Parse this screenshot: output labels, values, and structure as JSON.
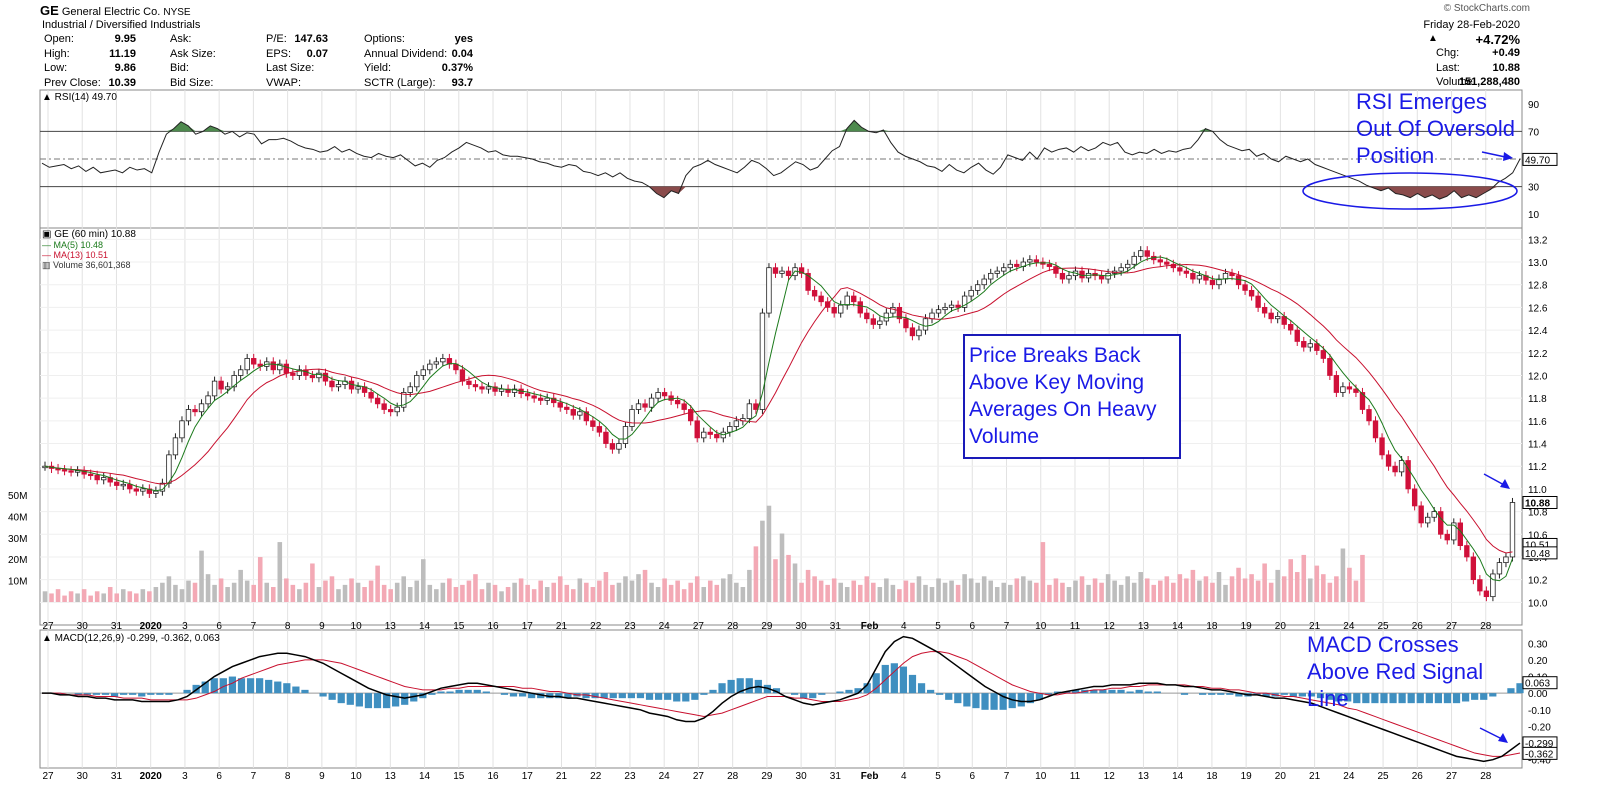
{
  "header": {
    "symbol": "GE",
    "company": "General Electric Co.",
    "exchange": "NYSE",
    "sector": "Industrial / Diversified Industrials",
    "credit": "© StockCharts.com",
    "date": "Friday  28-Feb-2020",
    "change_pct": "+4.72%",
    "stats_left": [
      {
        "label": "Open:",
        "value": "9.95"
      },
      {
        "label": "High:",
        "value": "11.19"
      },
      {
        "label": "Low:",
        "value": "9.86"
      },
      {
        "label": "Prev Close:",
        "value": "10.39"
      }
    ],
    "stats_mid": [
      {
        "label": "Ask:",
        "value": ""
      },
      {
        "label": "Ask Size:",
        "value": ""
      },
      {
        "label": "Bid:",
        "value": ""
      },
      {
        "label": "Bid Size:",
        "value": ""
      }
    ],
    "stats_mid2": [
      {
        "label": "P/E:",
        "value": "147.63"
      },
      {
        "label": "EPS:",
        "value": "0.07"
      },
      {
        "label": "Last Size:",
        "value": ""
      },
      {
        "label": "VWAP:",
        "value": ""
      }
    ],
    "stats_mid3": [
      {
        "label": "Options:",
        "value": "yes"
      },
      {
        "label": "Annual Dividend:",
        "value": "0.04"
      },
      {
        "label": "Yield:",
        "value": "0.37%"
      },
      {
        "label": "SCTR (Large):",
        "value": "93.7"
      }
    ],
    "stats_right": [
      {
        "label": "Chg:",
        "value": "+0.49"
      },
      {
        "label": "Last:",
        "value": "10.88"
      },
      {
        "label": "Volume:",
        "value": "151,288,480"
      }
    ]
  },
  "annotations": {
    "rsi_note": "RSI Emerges\nOut Of Oversold\nPosition",
    "price_note": "Price Breaks Back\nAbove Key Moving\nAverages On Heavy\nVolume",
    "macd_note": "MACD Crosses\nAbove Red Signal\nLine"
  },
  "colors": {
    "up": "#000000",
    "down": "#d0103a",
    "ma5": "#1b7a1b",
    "ma13": "#c8102e",
    "rsi_fill_up": "#4e8a4e",
    "rsi_fill_down": "#8a4b4b",
    "macd_hist": "#3f8fc0",
    "annot": "#1a1ae6"
  },
  "chart_data": [
    {
      "type": "line",
      "panel": "RSI",
      "title": "RSI(14) 49.70",
      "last": "49.70",
      "ylim": [
        0,
        100
      ],
      "yticks": [
        10,
        30,
        50,
        70,
        90
      ],
      "levels": [
        30,
        70
      ],
      "values": [
        47,
        44,
        45,
        46,
        43,
        45,
        41,
        44,
        40,
        41,
        42,
        40,
        44,
        42,
        43,
        40,
        55,
        68,
        72,
        77,
        74,
        68,
        70,
        74,
        72,
        68,
        70,
        66,
        69,
        68,
        61,
        64,
        64,
        65,
        63,
        60,
        58,
        57,
        55,
        56,
        59,
        55,
        57,
        54,
        52,
        51,
        54,
        52,
        51,
        53,
        49,
        45,
        47,
        44,
        49,
        51,
        55,
        58,
        62,
        60,
        58,
        55,
        56,
        53,
        52,
        52,
        51,
        50,
        48,
        47,
        45,
        44,
        46,
        45,
        41,
        40,
        38,
        40,
        37,
        40,
        36,
        34,
        33,
        30,
        25,
        22,
        27,
        25,
        38,
        44,
        46,
        49,
        46,
        44,
        42,
        40,
        44,
        49,
        47,
        43,
        38,
        40,
        44,
        48,
        46,
        42,
        44,
        50,
        56,
        59,
        72,
        78,
        73,
        70,
        69,
        71,
        62,
        55,
        52,
        50,
        48,
        45,
        44,
        41,
        46,
        42,
        40,
        44,
        47,
        42,
        39,
        44,
        53,
        51,
        49,
        55,
        50,
        58,
        55,
        57,
        58,
        55,
        59,
        56,
        58,
        62,
        60,
        62,
        55,
        53,
        55,
        54,
        57,
        54,
        56,
        55,
        57,
        58,
        64,
        72,
        70,
        64,
        60,
        58,
        56,
        57,
        52,
        54,
        50,
        48,
        52,
        50,
        48,
        50,
        46,
        44,
        42,
        40,
        38,
        36,
        34,
        31,
        29,
        27,
        29,
        25,
        24,
        22,
        25,
        22,
        24,
        21,
        23,
        27,
        22,
        24,
        22,
        25,
        28,
        33,
        36,
        40,
        50
      ]
    },
    {
      "type": "candlestick",
      "panel": "Price",
      "title": "GE (60 min) 10.88",
      "ma5_label": "MA(5) 10.48",
      "ma13_label": "MA(13) 10.51",
      "volume_label": "Volume 36,601,368",
      "last": "10.88",
      "ma5_last": "10.48",
      "ma13_last": "10.51",
      "ylim": [
        9.8,
        13.3
      ],
      "yticks": [
        10.0,
        10.2,
        10.4,
        10.6,
        10.8,
        11.0,
        11.2,
        11.4,
        11.6,
        11.8,
        12.0,
        12.2,
        12.4,
        12.6,
        12.8,
        13.0,
        13.2
      ],
      "close": [
        11.2,
        11.18,
        11.17,
        11.16,
        11.15,
        11.16,
        11.13,
        11.12,
        11.08,
        11.1,
        11.06,
        11.03,
        11.04,
        11.0,
        10.98,
        11.0,
        10.96,
        10.98,
        11.05,
        11.3,
        11.45,
        11.6,
        11.7,
        11.68,
        11.75,
        11.82,
        11.95,
        11.88,
        11.9,
        12.0,
        12.05,
        12.15,
        12.1,
        12.08,
        12.12,
        12.05,
        12.1,
        12.02,
        12.0,
        12.05,
        12.0,
        11.98,
        12.02,
        11.95,
        11.9,
        11.92,
        11.95,
        11.88,
        11.9,
        11.85,
        11.8,
        11.75,
        11.7,
        11.68,
        11.72,
        11.85,
        11.9,
        12.0,
        12.05,
        12.1,
        12.12,
        12.15,
        12.1,
        12.05,
        11.95,
        11.92,
        11.9,
        11.88,
        11.9,
        11.86,
        11.88,
        11.85,
        11.88,
        11.84,
        11.82,
        11.8,
        11.78,
        11.8,
        11.76,
        11.72,
        11.7,
        11.65,
        11.68,
        11.6,
        11.55,
        11.5,
        11.4,
        11.35,
        11.4,
        11.55,
        11.7,
        11.75,
        11.72,
        11.8,
        11.85,
        11.82,
        11.78,
        11.75,
        11.7,
        11.6,
        11.45,
        11.5,
        11.48,
        11.45,
        11.5,
        11.55,
        11.6,
        11.62,
        11.75,
        11.7,
        12.55,
        12.95,
        12.9,
        12.92,
        12.88,
        12.95,
        12.9,
        12.75,
        12.7,
        12.65,
        12.6,
        12.55,
        12.62,
        12.7,
        12.65,
        12.55,
        12.5,
        12.45,
        12.48,
        12.55,
        12.6,
        12.5,
        12.42,
        12.35,
        12.4,
        12.5,
        12.55,
        12.58,
        12.6,
        12.62,
        12.6,
        12.7,
        12.75,
        12.8,
        12.85,
        12.9,
        12.92,
        12.95,
        12.98,
        12.96,
        13.0,
        13.02,
        13.0,
        12.98,
        12.96,
        12.9,
        12.85,
        12.88,
        12.92,
        12.86,
        12.9,
        12.88,
        12.85,
        12.9,
        12.92,
        12.95,
        12.98,
        13.05,
        13.1,
        13.05,
        13.02,
        13.0,
        12.98,
        12.95,
        12.92,
        12.9,
        12.85,
        12.88,
        12.84,
        12.8,
        12.85,
        12.9,
        12.88,
        12.8,
        12.75,
        12.7,
        12.6,
        12.55,
        12.5,
        12.52,
        12.45,
        12.4,
        12.3,
        12.25,
        12.28,
        12.22,
        12.15,
        12.0,
        11.85,
        11.9,
        11.88,
        11.85,
        11.7,
        11.6,
        11.45,
        11.3,
        11.2,
        11.15,
        11.25,
        11.0,
        10.85,
        10.7,
        10.75,
        10.8,
        10.6,
        10.55,
        10.7,
        10.5,
        10.4,
        10.2,
        10.1,
        10.05,
        10.25,
        10.35,
        10.4,
        10.88
      ],
      "volume_millions": [
        5,
        4,
        6,
        3,
        5,
        4,
        6,
        3,
        5,
        4,
        7,
        4,
        6,
        5,
        4,
        6,
        5,
        7,
        9,
        12,
        8,
        6,
        10,
        9,
        24,
        13,
        8,
        11,
        7,
        9,
        15,
        10,
        8,
        21,
        9,
        7,
        28,
        11,
        8,
        6,
        9,
        18,
        7,
        10,
        12,
        6,
        8,
        11,
        9,
        7,
        10,
        17,
        8,
        6,
        9,
        12,
        7,
        10,
        20,
        8,
        6,
        9,
        11,
        7,
        8,
        10,
        13,
        6,
        9,
        8,
        5,
        7,
        9,
        11,
        8,
        6,
        10,
        7,
        9,
        12,
        8,
        6,
        11,
        9,
        7,
        10,
        14,
        8,
        9,
        12,
        10,
        13,
        15,
        9,
        7,
        11,
        8,
        10,
        6,
        9,
        12,
        7,
        10,
        8,
        11,
        13,
        9,
        7,
        15,
        26,
        38,
        45,
        20,
        32,
        22,
        18,
        9,
        15,
        12,
        10,
        8,
        11,
        9,
        7,
        10,
        8,
        12,
        9,
        7,
        11,
        8,
        6,
        10,
        9,
        12,
        8,
        7,
        11,
        9,
        10,
        8,
        13,
        11,
        9,
        12,
        10,
        7,
        9,
        8,
        11,
        12,
        10,
        9,
        28,
        8,
        11,
        9,
        7,
        10,
        12,
        8,
        11,
        9,
        13,
        10,
        8,
        12,
        9,
        14,
        11,
        8,
        10,
        12,
        9,
        13,
        11,
        15,
        10,
        12,
        9,
        14,
        8,
        12,
        16,
        11,
        13,
        10,
        18,
        9,
        15,
        12,
        20,
        14,
        22,
        11,
        17,
        13,
        9,
        12,
        25,
        16,
        10,
        22
      ]
    },
    {
      "type": "line",
      "panel": "MACD",
      "title": "MACD(12,26,9) -0.299, -0.362, 0.063",
      "series": [
        {
          "name": "MACD(12,26,9)",
          "last": "-0.299"
        },
        {
          "name": "signal",
          "last": "-0.362"
        },
        {
          "name": "histogram",
          "last": "0.063"
        }
      ],
      "ylim": [
        -0.45,
        0.38
      ],
      "yticks": [
        0.3,
        0.2,
        0.1,
        0.0,
        -0.1,
        -0.2,
        -0.3,
        -0.4
      ],
      "macd": [
        0.0,
        0.0,
        -0.01,
        -0.01,
        -0.02,
        -0.02,
        -0.03,
        -0.03,
        -0.04,
        -0.04,
        -0.04,
        -0.05,
        -0.05,
        -0.05,
        -0.05,
        -0.04,
        -0.02,
        0.02,
        0.06,
        0.1,
        0.13,
        0.16,
        0.18,
        0.2,
        0.22,
        0.23,
        0.24,
        0.24,
        0.23,
        0.22,
        0.2,
        0.18,
        0.15,
        0.12,
        0.09,
        0.06,
        0.03,
        0.01,
        -0.01,
        -0.02,
        -0.03,
        -0.02,
        -0.01,
        0.01,
        0.03,
        0.04,
        0.05,
        0.06,
        0.06,
        0.05,
        0.04,
        0.03,
        0.02,
        0.01,
        0.0,
        -0.01,
        -0.02,
        -0.02,
        -0.03,
        -0.03,
        -0.04,
        -0.05,
        -0.06,
        -0.07,
        -0.08,
        -0.09,
        -0.1,
        -0.12,
        -0.13,
        -0.14,
        -0.16,
        -0.17,
        -0.17,
        -0.15,
        -0.11,
        -0.06,
        -0.02,
        0.01,
        0.03,
        0.04,
        0.03,
        0.01,
        -0.02,
        -0.04,
        -0.06,
        -0.07,
        -0.06,
        -0.05,
        -0.04,
        -0.02,
        0.0,
        0.05,
        0.15,
        0.25,
        0.31,
        0.34,
        0.33,
        0.3,
        0.27,
        0.24,
        0.2,
        0.16,
        0.12,
        0.08,
        0.04,
        0.01,
        -0.02,
        -0.04,
        -0.05,
        -0.05,
        -0.04,
        -0.02,
        0.0,
        0.01,
        0.02,
        0.03,
        0.04,
        0.04,
        0.05,
        0.05,
        0.05,
        0.06,
        0.06,
        0.06,
        0.05,
        0.05,
        0.04,
        0.04,
        0.03,
        0.02,
        0.02,
        0.01,
        0.0,
        -0.01,
        -0.01,
        -0.02,
        -0.03,
        -0.03,
        -0.04,
        -0.05,
        -0.06,
        -0.08,
        -0.1,
        -0.12,
        -0.14,
        -0.16,
        -0.18,
        -0.2,
        -0.22,
        -0.24,
        -0.26,
        -0.28,
        -0.3,
        -0.32,
        -0.34,
        -0.36,
        -0.38,
        -0.39,
        -0.4,
        -0.41,
        -0.4,
        -0.38,
        -0.34,
        -0.3
      ],
      "signal": [
        0.0,
        0.0,
        0.0,
        -0.01,
        -0.01,
        -0.01,
        -0.02,
        -0.02,
        -0.02,
        -0.03,
        -0.03,
        -0.03,
        -0.04,
        -0.04,
        -0.04,
        -0.04,
        -0.04,
        -0.03,
        -0.01,
        0.01,
        0.04,
        0.06,
        0.09,
        0.11,
        0.13,
        0.15,
        0.17,
        0.18,
        0.19,
        0.2,
        0.2,
        0.2,
        0.19,
        0.18,
        0.16,
        0.14,
        0.12,
        0.1,
        0.08,
        0.06,
        0.04,
        0.03,
        0.02,
        0.02,
        0.02,
        0.03,
        0.03,
        0.04,
        0.04,
        0.04,
        0.04,
        0.04,
        0.04,
        0.03,
        0.03,
        0.02,
        0.01,
        0.01,
        0.0,
        -0.01,
        -0.01,
        -0.02,
        -0.03,
        -0.04,
        -0.05,
        -0.06,
        -0.07,
        -0.08,
        -0.09,
        -0.1,
        -0.11,
        -0.12,
        -0.13,
        -0.14,
        -0.13,
        -0.12,
        -0.1,
        -0.08,
        -0.06,
        -0.04,
        -0.02,
        -0.02,
        -0.02,
        -0.03,
        -0.03,
        -0.04,
        -0.05,
        -0.05,
        -0.05,
        -0.04,
        -0.03,
        -0.01,
        0.03,
        0.08,
        0.13,
        0.18,
        0.22,
        0.24,
        0.25,
        0.25,
        0.24,
        0.22,
        0.2,
        0.17,
        0.14,
        0.11,
        0.08,
        0.05,
        0.03,
        0.01,
        0.0,
        -0.01,
        -0.01,
        0.0,
        0.0,
        0.01,
        0.02,
        0.02,
        0.03,
        0.03,
        0.04,
        0.04,
        0.05,
        0.05,
        0.05,
        0.05,
        0.05,
        0.04,
        0.04,
        0.03,
        0.03,
        0.02,
        0.02,
        0.01,
        0.0,
        0.0,
        -0.01,
        -0.02,
        -0.02,
        -0.03,
        -0.04,
        -0.05,
        -0.06,
        -0.07,
        -0.09,
        -0.1,
        -0.12,
        -0.14,
        -0.16,
        -0.18,
        -0.2,
        -0.22,
        -0.24,
        -0.26,
        -0.28,
        -0.3,
        -0.32,
        -0.34,
        -0.36,
        -0.37,
        -0.38,
        -0.38,
        -0.37,
        -0.36
      ]
    }
  ],
  "x_axis": {
    "labels": [
      "27",
      "30",
      "31",
      "2020",
      "3",
      "6",
      "7",
      "8",
      "9",
      "10",
      "13",
      "14",
      "15",
      "16",
      "17",
      "21",
      "22",
      "23",
      "24",
      "27",
      "28",
      "29",
      "30",
      "31",
      "Feb",
      "4",
      "5",
      "6",
      "7",
      "10",
      "11",
      "12",
      "13",
      "14",
      "18",
      "19",
      "20",
      "21",
      "24",
      "25",
      "26",
      "27",
      "28"
    ],
    "bold": [
      "2020",
      "Feb"
    ]
  },
  "volume_axis": [
    "50M",
    "40M",
    "30M",
    "20M",
    "10M"
  ]
}
